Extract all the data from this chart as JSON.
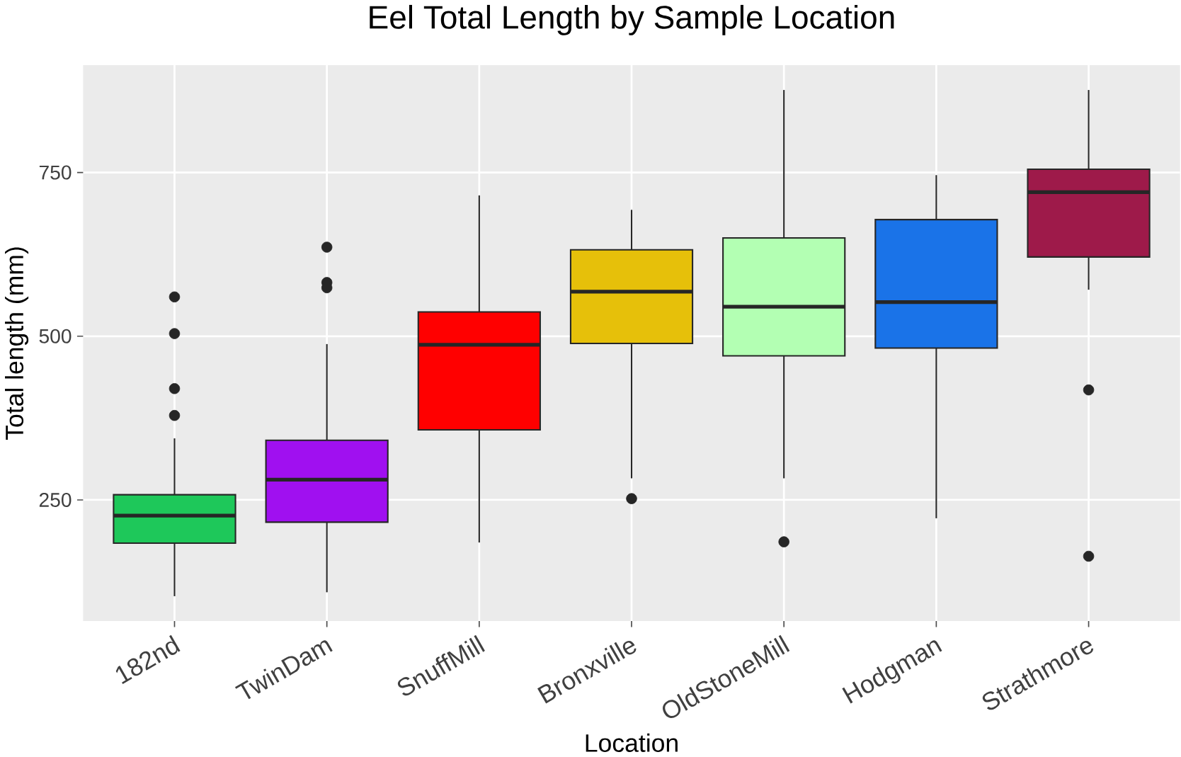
{
  "chart_data": {
    "type": "box",
    "title": "Eel Total Length by Sample Location",
    "xlabel": "Location",
    "ylabel": "Total length (mm)",
    "categories": [
      "182nd",
      "TwinDam",
      "SnuffMill",
      "Bronxville",
      "OldStoneMill",
      "Hodgman",
      "Strathmore"
    ],
    "colors": [
      "#1ec85a",
      "#a010f0",
      "#ff0000",
      "#e6c00a",
      "#b3ffb3",
      "#1a73e8",
      "#9e1a4a"
    ],
    "boxes": [
      {
        "low": 103,
        "q1": 184,
        "median": 226,
        "q3": 258,
        "high": 344,
        "outliers": [
          560,
          504,
          420,
          379
        ]
      },
      {
        "low": 109,
        "q1": 216,
        "median": 281,
        "q3": 341,
        "high": 488,
        "outliers": [
          636,
          582,
          574
        ]
      },
      {
        "low": 185,
        "q1": 357,
        "median": 487,
        "q3": 537,
        "high": 715
      },
      {
        "low": 283,
        "q1": 489,
        "median": 568,
        "q3": 632,
        "high": 693,
        "outliers": [
          252
        ]
      },
      {
        "low": 283,
        "q1": 470,
        "median": 545,
        "q3": 650,
        "high": 876,
        "outliers": [
          186
        ]
      },
      {
        "low": 222,
        "q1": 482,
        "median": 552,
        "q3": 678,
        "high": 746
      },
      {
        "low": 571,
        "q1": 621,
        "median": 720,
        "q3": 755,
        "high": 876,
        "outliers": [
          418,
          164
        ]
      }
    ],
    "ylim": [
      65,
      914
    ],
    "yticks": [
      250,
      500,
      750
    ],
    "grid": true
  }
}
